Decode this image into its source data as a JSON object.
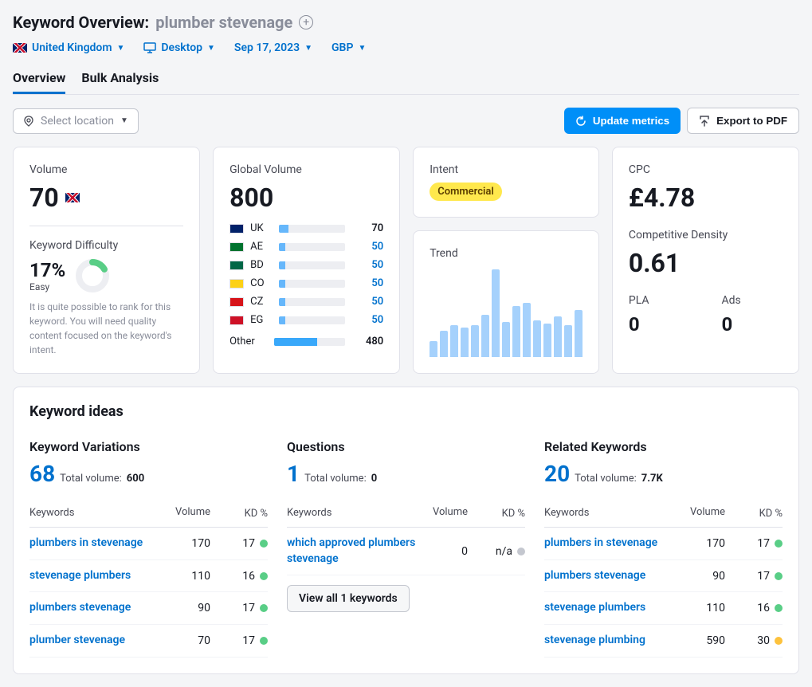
{
  "header": {
    "title_label": "Keyword Overview:",
    "keyword": "plumber stevenage",
    "filters": {
      "country": "United Kingdom",
      "device": "Desktop",
      "date": "Sep 17, 2023",
      "currency": "GBP"
    }
  },
  "tabs": {
    "overview": "Overview",
    "bulk": "Bulk Analysis"
  },
  "actions": {
    "location_placeholder": "Select location",
    "update": "Update metrics",
    "export": "Export to PDF"
  },
  "volume_card": {
    "label": "Volume",
    "value": "70",
    "kd_label": "Keyword Difficulty",
    "kd_value": "17%",
    "kd_easy": "Easy",
    "kd_desc": "It is quite possible to rank for this keyword. You will need quality content focused on the keyword's intent.",
    "kd_percent": 17,
    "kd_color": "#59ce86"
  },
  "global_card": {
    "label": "Global Volume",
    "value": "800",
    "countries": [
      {
        "code": "UK",
        "flag": "#012169",
        "value": "70",
        "pct": 14,
        "link": false
      },
      {
        "code": "AE",
        "flag": "#00732f",
        "value": "50",
        "pct": 10,
        "link": true
      },
      {
        "code": "BD",
        "flag": "#006747",
        "value": "50",
        "pct": 10,
        "link": true
      },
      {
        "code": "CO",
        "flag": "#fcd116",
        "value": "50",
        "pct": 10,
        "link": true
      },
      {
        "code": "CZ",
        "flag": "#d7141a",
        "value": "50",
        "pct": 10,
        "link": true
      },
      {
        "code": "EG",
        "flag": "#ce1126",
        "value": "50",
        "pct": 10,
        "link": true
      }
    ],
    "other_label": "Other",
    "other_value": "480",
    "other_pct": 60
  },
  "intent_card": {
    "label": "Intent",
    "value": "Commercial"
  },
  "trend_card": {
    "label": "Trend",
    "bars": [
      18,
      30,
      36,
      34,
      36,
      48,
      100,
      40,
      58,
      62,
      42,
      38,
      46,
      36,
      54
    ]
  },
  "cpc_card": {
    "cpc_label": "CPC",
    "cpc_value": "£4.78",
    "cd_label": "Competitive Density",
    "cd_value": "0.61",
    "pla_label": "PLA",
    "pla_value": "0",
    "ads_label": "Ads",
    "ads_value": "0"
  },
  "ideas": {
    "title": "Keyword ideas",
    "headers": {
      "kw": "Keywords",
      "vol": "Volume",
      "kd": "KD %"
    },
    "variations": {
      "title": "Keyword Variations",
      "count": "68",
      "vol_label": "Total volume:",
      "vol_value": "600",
      "rows": [
        {
          "kw": "plumbers in stevenage",
          "vol": "170",
          "kd": "17",
          "dot": "#59ce86"
        },
        {
          "kw": "stevenage plumbers",
          "vol": "110",
          "kd": "16",
          "dot": "#59ce86"
        },
        {
          "kw": "plumbers stevenage",
          "vol": "90",
          "kd": "17",
          "dot": "#59ce86"
        },
        {
          "kw": "plumber stevenage",
          "vol": "70",
          "kd": "17",
          "dot": "#59ce86"
        }
      ]
    },
    "questions": {
      "title": "Questions",
      "count": "1",
      "vol_label": "Total volume:",
      "vol_value": "0",
      "rows": [
        {
          "kw": "which approved plumbers stevenage",
          "vol": "0",
          "kd": "n/a",
          "dot": "#c4c7cf"
        }
      ],
      "view_all": "View all 1 keywords"
    },
    "related": {
      "title": "Related Keywords",
      "count": "20",
      "vol_label": "Total volume:",
      "vol_value": "7.7K",
      "rows": [
        {
          "kw": "plumbers in stevenage",
          "vol": "170",
          "kd": "17",
          "dot": "#59ce86"
        },
        {
          "kw": "plumbers stevenage",
          "vol": "90",
          "kd": "17",
          "dot": "#59ce86"
        },
        {
          "kw": "stevenage plumbers",
          "vol": "110",
          "kd": "16",
          "dot": "#59ce86"
        },
        {
          "kw": "stevenage plumbing",
          "vol": "590",
          "kd": "30",
          "dot": "#fdc23c"
        }
      ]
    }
  }
}
